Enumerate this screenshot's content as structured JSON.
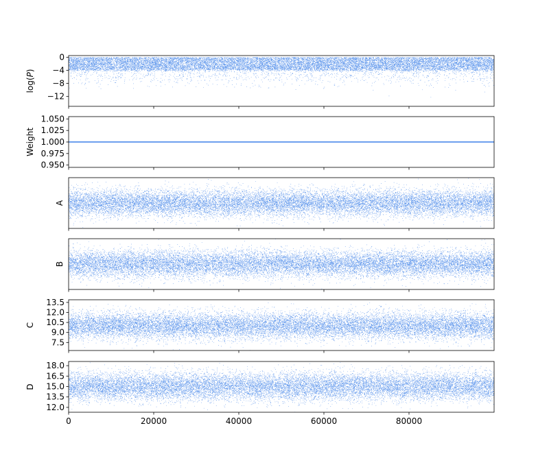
{
  "chart_data": {
    "type": "scatter",
    "colors": {
      "points": "#3b7fe8",
      "line": "#3b7fe8",
      "axes": "#000000"
    },
    "x": {
      "range": [
        0,
        100000
      ],
      "ticks": [
        0,
        20000,
        40000,
        60000,
        80000
      ],
      "tick_labels": [
        "0",
        "20000",
        "40000",
        "60000",
        "80000"
      ]
    },
    "panels": [
      {
        "id": "logp",
        "ylabel": "log(P)",
        "ylim": [
          -15,
          0.5
        ],
        "ticks": [
          0,
          -4,
          -8,
          -12
        ],
        "tick_labels": [
          "0",
          "−4",
          "−8",
          "−12"
        ],
        "style": "scatter",
        "distribution": {
          "kind": "logp",
          "mode": -1.5,
          "band": [
            -4,
            0
          ],
          "tail_min": -14.5
        }
      },
      {
        "id": "weight",
        "ylabel": "Weight",
        "ylim": [
          0.945,
          1.055
        ],
        "ticks": [
          1.05,
          1.025,
          1.0,
          0.975,
          0.95
        ],
        "tick_labels": [
          "1.050",
          "1.025",
          "1.000",
          "0.975",
          "0.950"
        ],
        "style": "line",
        "value": 1.0
      },
      {
        "id": "a",
        "ylabel": "A",
        "ylim": [
          -3.8,
          3.8
        ],
        "ticks": [],
        "tick_labels": [],
        "style": "scatter",
        "distribution": {
          "kind": "normal",
          "mean": 0,
          "sd": 1
        }
      },
      {
        "id": "b",
        "ylabel": "B",
        "ylim": [
          -3.8,
          3.8
        ],
        "ticks": [],
        "tick_labels": [],
        "style": "scatter",
        "distribution": {
          "kind": "normal",
          "mean": 0,
          "sd": 1
        }
      },
      {
        "id": "c",
        "ylabel": "C",
        "ylim": [
          6.3,
          13.9
        ],
        "ticks": [
          13.5,
          12.0,
          10.5,
          9.0,
          7.5
        ],
        "tick_labels": [
          "13.5",
          "12.0",
          "10.5",
          "9.0",
          "7.5"
        ],
        "style": "scatter",
        "distribution": {
          "kind": "normal",
          "mean": 10,
          "sd": 1
        }
      },
      {
        "id": "d",
        "ylabel": "D",
        "ylim": [
          11.3,
          18.6
        ],
        "ticks": [
          18.0,
          16.5,
          15.0,
          13.5,
          12.0
        ],
        "tick_labels": [
          "18.0",
          "16.5",
          "15.0",
          "13.5",
          "12.0"
        ],
        "style": "scatter",
        "distribution": {
          "kind": "normal",
          "mean": 15,
          "sd": 1
        }
      }
    ]
  }
}
